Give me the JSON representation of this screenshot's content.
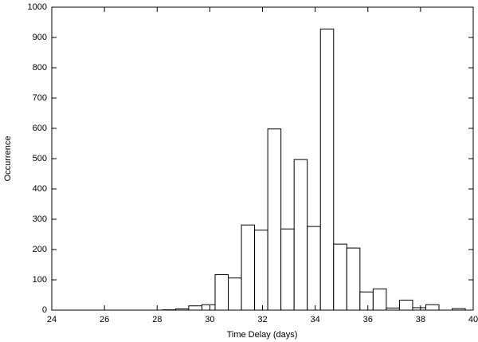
{
  "chart_data": {
    "type": "histogram",
    "xlabel": "Time Delay (days)",
    "ylabel": "Occurrence",
    "bins": [
      28.2,
      28.7,
      29.2,
      29.7,
      30.2,
      30.7,
      31.2,
      31.7,
      32.2,
      32.7,
      33.2,
      33.7,
      34.2,
      34.7,
      35.2,
      35.7,
      36.2,
      36.7,
      37.2,
      37.7,
      38.2,
      38.7,
      39.2,
      39.7
    ],
    "values": [
      1,
      4,
      14,
      18,
      117,
      106,
      281,
      264,
      598,
      268,
      497,
      276,
      928,
      218,
      205,
      60,
      70,
      7,
      33,
      8,
      18,
      0,
      5
    ],
    "color": "#ffffff",
    "edgecolor": "#000000",
    "xlim": [
      24,
      40
    ],
    "xticks": [
      24,
      26,
      28,
      30,
      32,
      34,
      36,
      38,
      40
    ],
    "ylim": [
      0,
      1000
    ],
    "yticks": [
      0,
      100,
      200,
      300,
      400,
      500,
      600,
      700,
      800,
      900,
      1000
    ]
  }
}
